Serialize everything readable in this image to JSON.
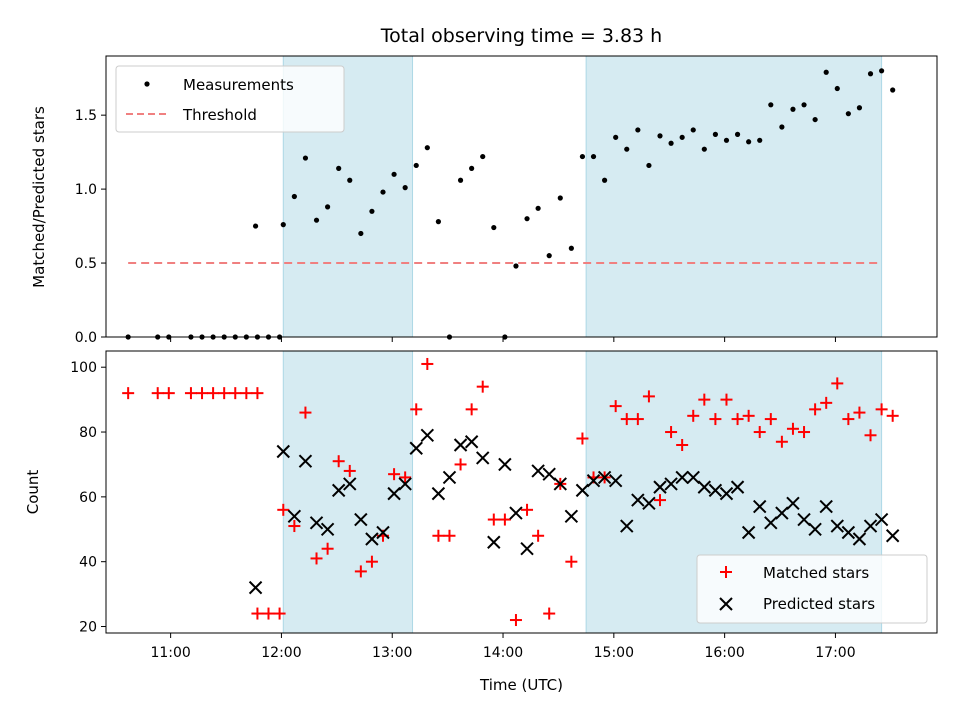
{
  "title": "Total observing time = 3.83 h",
  "colors": {
    "measurements": "#000000",
    "threshold": "#f08080",
    "shade": "#add8e6",
    "matched": "#ff0000",
    "predicted": "#000000"
  },
  "chart_data": [
    {
      "type": "scatter",
      "title": "Total observing time = 3.83 h",
      "ylabel": "Matched/Predicted stars",
      "xlabel": "",
      "xlim": [
        "10:25",
        "17:55"
      ],
      "ylim": [
        0,
        1.9
      ],
      "yticks": [
        "0.0",
        "0.5",
        "1.0",
        "1.5"
      ],
      "shaded_intervals": [
        [
          "12:01",
          "13:11"
        ],
        [
          "14:45",
          "17:25"
        ]
      ],
      "legend_position": "top-left",
      "threshold": {
        "name": "Threshold",
        "value": 0.5,
        "x_range": [
          "10:37",
          "17:25"
        ]
      },
      "series": [
        {
          "name": "Measurements",
          "x": [
            "10:37",
            "10:53",
            "10:59",
            "11:11",
            "11:17",
            "11:23",
            "11:29",
            "11:35",
            "11:41",
            "11:47",
            "11:53",
            "11:59",
            "11:46",
            "12:01",
            "12:07",
            "12:13",
            "12:19",
            "12:25",
            "12:31",
            "12:37",
            "12:43",
            "12:49",
            "12:55",
            "13:01",
            "13:07",
            "13:13",
            "13:19",
            "13:25",
            "13:31",
            "13:37",
            "13:43",
            "13:49",
            "13:55",
            "14:01",
            "14:07",
            "14:13",
            "14:19",
            "14:25",
            "14:31",
            "14:37",
            "14:43",
            "14:49",
            "14:55",
            "15:01",
            "15:07",
            "15:13",
            "15:19",
            "15:25",
            "15:31",
            "15:37",
            "15:43",
            "15:49",
            "15:55",
            "16:01",
            "16:07",
            "16:13",
            "16:19",
            "16:25",
            "16:31",
            "16:37",
            "16:43",
            "16:49",
            "16:55",
            "17:01",
            "17:07",
            "17:13",
            "17:19",
            "17:25",
            "17:31"
          ],
          "y": [
            0,
            0,
            0,
            0,
            0,
            0,
            0,
            0,
            0,
            0,
            0,
            0,
            0.75,
            0.76,
            0.95,
            1.21,
            0.79,
            0.88,
            1.14,
            1.06,
            0.7,
            0.85,
            0.98,
            1.1,
            1.01,
            1.16,
            1.28,
            0.78,
            0,
            1.06,
            1.14,
            1.22,
            0.74,
            0,
            0.48,
            0.8,
            0.87,
            0.55,
            0.94,
            0.6,
            1.22,
            1.22,
            1.06,
            1.35,
            1.27,
            1.4,
            1.16,
            1.36,
            1.31,
            1.35,
            1.4,
            1.27,
            1.37,
            1.33,
            1.37,
            1.32,
            1.33,
            1.57,
            1.42,
            1.54,
            1.57,
            1.47,
            1.79,
            1.68,
            1.51,
            1.55,
            1.78,
            1.8,
            1.67
          ]
        }
      ]
    },
    {
      "type": "scatter",
      "xlabel": "Time (UTC)",
      "ylabel": "Count",
      "xlim": [
        "10:25",
        "17:55"
      ],
      "ylim": [
        18,
        105
      ],
      "xticks": [
        "11:00",
        "12:00",
        "13:00",
        "14:00",
        "15:00",
        "16:00",
        "17:00"
      ],
      "yticks": [
        "20",
        "40",
        "60",
        "80",
        "100"
      ],
      "shaded_intervals": [
        [
          "12:01",
          "13:11"
        ],
        [
          "14:45",
          "17:25"
        ]
      ],
      "legend_position": "bottom-right",
      "series": [
        {
          "name": "Matched stars",
          "x": [
            "10:37",
            "10:53",
            "10:59",
            "11:11",
            "11:17",
            "11:23",
            "11:29",
            "11:35",
            "11:41",
            "11:47",
            "11:47",
            "11:53",
            "11:59",
            "12:01",
            "12:07",
            "12:13",
            "12:19",
            "12:25",
            "12:31",
            "12:37",
            "12:43",
            "12:49",
            "12:55",
            "13:01",
            "13:07",
            "13:13",
            "13:19",
            "13:25",
            "13:31",
            "13:37",
            "13:43",
            "13:49",
            "13:55",
            "14:01",
            "14:07",
            "14:13",
            "14:19",
            "14:25",
            "14:31",
            "14:37",
            "14:43",
            "14:49",
            "14:55",
            "15:01",
            "15:07",
            "15:13",
            "15:19",
            "15:25",
            "15:31",
            "15:37",
            "15:43",
            "15:49",
            "15:55",
            "16:01",
            "16:07",
            "16:13",
            "16:19",
            "16:25",
            "16:31",
            "16:37",
            "16:43",
            "16:49",
            "16:55",
            "17:01",
            "17:07",
            "17:13",
            "17:19",
            "17:25",
            "17:31"
          ],
          "y": [
            92,
            92,
            92,
            92,
            92,
            92,
            92,
            92,
            92,
            92,
            24,
            24,
            24,
            56,
            51,
            86,
            41,
            44,
            71,
            68,
            37,
            40,
            48,
            67,
            66,
            87,
            101,
            48,
            48,
            70,
            87,
            94,
            53,
            53,
            22,
            56,
            48,
            24,
            64,
            40,
            78,
            66,
            66,
            88,
            84,
            84,
            91,
            59,
            80,
            76,
            85,
            90,
            84,
            90,
            84,
            85,
            80,
            84,
            77,
            81,
            80,
            87,
            89,
            95,
            84,
            86,
            79,
            87,
            85
          ]
        },
        {
          "name": "Predicted stars",
          "x": [
            "11:46",
            "12:01",
            "12:07",
            "12:13",
            "12:19",
            "12:25",
            "12:31",
            "12:37",
            "12:43",
            "12:49",
            "12:55",
            "13:01",
            "13:07",
            "13:13",
            "13:19",
            "13:25",
            "13:31",
            "13:37",
            "13:43",
            "13:49",
            "13:55",
            "14:01",
            "14:07",
            "14:13",
            "14:19",
            "14:25",
            "14:31",
            "14:37",
            "14:43",
            "14:49",
            "14:55",
            "15:01",
            "15:07",
            "15:13",
            "15:19",
            "15:25",
            "15:31",
            "15:37",
            "15:43",
            "15:49",
            "15:55",
            "16:01",
            "16:07",
            "16:13",
            "16:19",
            "16:25",
            "16:31",
            "16:37",
            "16:43",
            "16:49",
            "16:55",
            "17:01",
            "17:07",
            "17:13",
            "17:19",
            "17:25",
            "17:31"
          ],
          "y": [
            32,
            74,
            54,
            71,
            52,
            50,
            62,
            64,
            53,
            47,
            49,
            61,
            64,
            75,
            79,
            61,
            66,
            76,
            77,
            72,
            46,
            70,
            55,
            44,
            68,
            67,
            64,
            54,
            62,
            65,
            66,
            65,
            51,
            59,
            58,
            63,
            64,
            66,
            66,
            63,
            62,
            61,
            63,
            49,
            57,
            52,
            55,
            58,
            53,
            50,
            57,
            51,
            49,
            47,
            51,
            53,
            48
          ]
        }
      ]
    }
  ]
}
